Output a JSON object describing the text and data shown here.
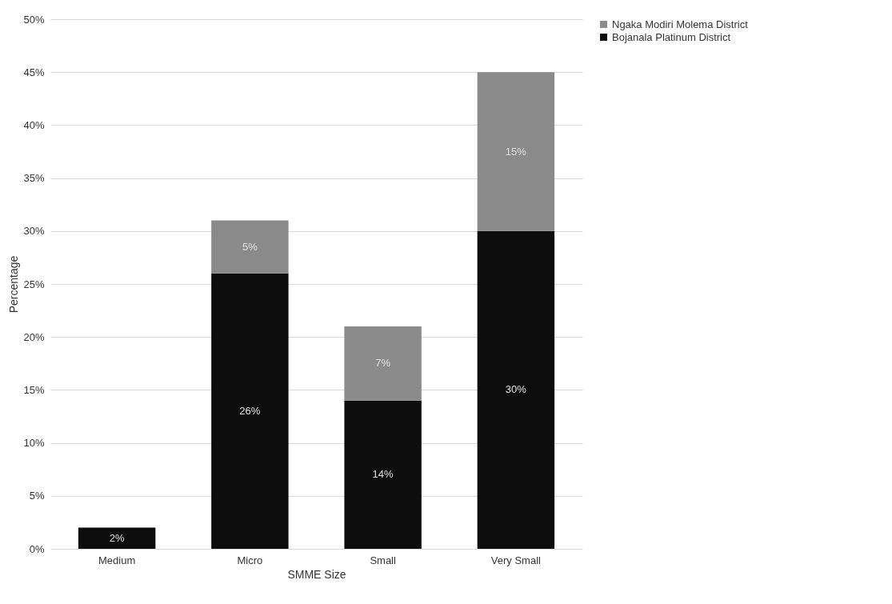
{
  "chart_data": {
    "type": "bar",
    "stacked": true,
    "xlabel": "SMME Size",
    "ylabel": "Percentage",
    "categories": [
      "Medium",
      "Micro",
      "Small",
      "Very Small"
    ],
    "series": [
      {
        "name": "Bojanala Platinum District",
        "color": "#0d0d0d",
        "values": [
          2,
          26,
          14,
          30
        ],
        "value_labels": [
          "2%",
          "26%",
          "14%",
          "30%"
        ]
      },
      {
        "name": "Ngaka Modiri Molema District",
        "color": "#8a8a8a",
        "values": [
          null,
          5,
          7,
          15
        ],
        "value_labels": [
          null,
          "5%",
          "7%",
          "15%"
        ]
      }
    ],
    "ylim": [
      0,
      50
    ],
    "yticks": [
      {
        "value": 0,
        "label": "0%"
      },
      {
        "value": 5,
        "label": "5%"
      },
      {
        "value": 10,
        "label": "10%"
      },
      {
        "value": 15,
        "label": "15%"
      },
      {
        "value": 20,
        "label": "20%"
      },
      {
        "value": 25,
        "label": "25%"
      },
      {
        "value": 30,
        "label": "30%"
      },
      {
        "value": 35,
        "label": "35%"
      },
      {
        "value": 40,
        "label": "40%"
      },
      {
        "value": 45,
        "label": "45%"
      },
      {
        "value": 50,
        "label": "50%"
      }
    ],
    "grid": "y",
    "legend": "right"
  }
}
